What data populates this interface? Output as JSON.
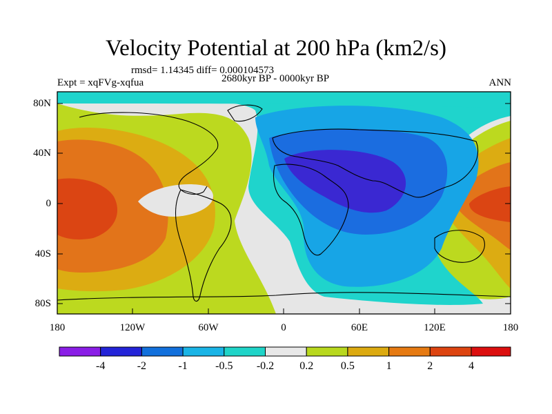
{
  "title": "Velocity Potential at 200 hPa (km2/s)",
  "stats": "rmsd= 1.14345 diff= 0.000104573",
  "period": "2680kyr BP - 0000kyr BP",
  "experiment": "Expt = xqFVg-xqfua",
  "season": "ANN",
  "lat_labels": [
    "80N",
    "40N",
    "0",
    "40S",
    "80S"
  ],
  "lon_labels": [
    "180",
    "120W",
    "60W",
    "0",
    "60E",
    "120E",
    "180"
  ],
  "colorbar": {
    "labels": [
      "-4",
      "-2",
      "-1",
      "-0.5",
      "-0.2",
      "0.2",
      "0.5",
      "1",
      "2",
      "4"
    ],
    "colors": [
      "#8a1ee6",
      "#2424d8",
      "#1270dc",
      "#1ab4e6",
      "#1fd4c8",
      "#e8e8e8",
      "#b8d81e",
      "#dcaa10",
      "#e67a12",
      "#dd4410",
      "#dc0f0f"
    ]
  },
  "palette": {
    "c_m4": "#3a28d2",
    "c_m2": "#1b6de0",
    "c_m1": "#17a5e6",
    "c_m05": "#1fd4cc",
    "c_m02": "#1fd4cc",
    "c_0": "#e6e6e6",
    "c_p02": "#bcd91f",
    "c_p05": "#dcac12",
    "c_p1": "#e8a012",
    "c_p2": "#e2741a",
    "c_p4": "#db4513"
  }
}
